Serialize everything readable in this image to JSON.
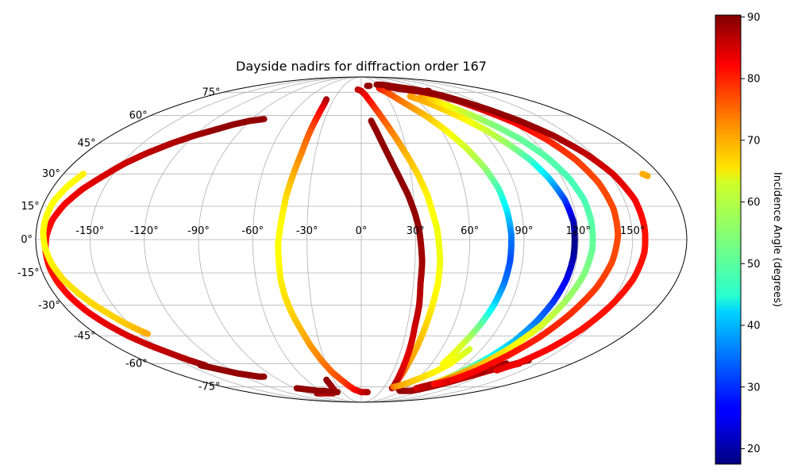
{
  "chart_data": {
    "type": "scatter",
    "projection": "mollweide",
    "title": "Dayside nadirs for diffraction order 167",
    "xlabel": "",
    "ylabel": "",
    "xlim": [
      -180,
      180
    ],
    "ylim": [
      -90,
      90
    ],
    "grid": true,
    "lon_tick_labels": [
      "-150°",
      "-120°",
      "-90°",
      "-60°",
      "-30°",
      "0°",
      "30°",
      "60°",
      "90°",
      "120°",
      "150°"
    ],
    "lat_tick_labels": [
      "-75°",
      "-60°",
      "-45°",
      "-30°",
      "-15°",
      "0°",
      "15°",
      "30°",
      "45°",
      "60°",
      "75°"
    ],
    "colorbar": {
      "label": "Incidence Angle (degrees)",
      "colormap": "jet",
      "range": [
        17.5,
        90.3
      ],
      "tick_labels": [
        "20",
        "30",
        "40",
        "50",
        "60",
        "70",
        "80",
        "90"
      ]
    },
    "series": [
      {
        "lon": [
          -38,
          -37,
          -37,
          -38,
          -39,
          -41,
          -43,
          -44,
          -45,
          -46,
          -46,
          -46,
          -45,
          -43,
          -40,
          -37,
          -33,
          -28,
          -22,
          -16,
          -10,
          -5,
          0,
          5,
          8,
          10
        ],
        "lat": [
          70,
          67,
          60,
          50,
          40,
          30,
          20,
          12,
          5,
          -2,
          -10,
          -18,
          -26,
          -34,
          -42,
          -50,
          -58,
          -65,
          -70,
          -74,
          -77,
          -78,
          -79,
          -79,
          -79,
          -79
        ],
        "incidence": [
          88,
          85,
          80,
          75,
          72,
          69,
          66,
          64,
          63,
          63,
          63,
          64,
          65,
          66,
          68,
          70,
          72,
          74,
          76,
          78,
          80,
          82,
          84,
          85,
          86,
          87
        ]
      },
      {
        "lon": [
          -75,
          -70,
          -62,
          -55,
          -48,
          -42,
          -39,
          -38,
          -38
        ],
        "lat": [
          -80,
          -80,
          -80,
          -80,
          -80,
          -79,
          -77,
          -74,
          -70
        ],
        "incidence": [
          88,
          87,
          86,
          86,
          86,
          86,
          87,
          88,
          89
        ]
      },
      {
        "lon": [
          -5,
          0,
          5,
          10,
          15,
          20,
          25,
          30,
          34,
          38,
          40,
          42,
          43,
          44,
          44,
          43,
          42,
          41,
          40,
          40,
          40
        ],
        "lat": [
          77,
          76,
          73,
          68,
          62,
          55,
          47,
          38,
          30,
          20,
          12,
          5,
          -2,
          -10,
          -20,
          -30,
          -40,
          -50,
          -60,
          -66,
          -72
        ],
        "incidence": [
          86,
          85,
          83,
          80,
          77,
          74,
          71,
          68,
          66,
          64,
          63,
          62,
          62,
          62,
          63,
          64,
          66,
          68,
          70,
          74,
          80
        ]
      },
      {
        "lon": [
          8,
          11,
          15,
          19,
          23,
          27,
          30,
          32,
          33,
          34,
          34,
          35,
          35,
          36,
          37,
          38,
          40,
          42
        ],
        "lat": [
          57,
          52,
          44,
          36,
          28,
          20,
          12,
          5,
          -2,
          -10,
          -20,
          -30,
          -40,
          -50,
          -60,
          -66,
          -72,
          -76
        ],
        "incidence": [
          89,
          89,
          89,
          89,
          89,
          89,
          89,
          89,
          88,
          88,
          87,
          86,
          85,
          84,
          83,
          84,
          85,
          86
        ]
      },
      {
        "lon": [
          10,
          12,
          14
        ],
        "lat": [
          80,
          80,
          80
        ],
        "incidence": [
          89,
          89,
          89
        ]
      },
      {
        "lon": [
          40,
          44,
          50,
          58,
          66,
          74,
          82,
          90,
          100,
          110,
          120,
          128,
          135
        ],
        "lat": [
          -72,
          -74,
          -76,
          -78,
          -78,
          -78,
          -77,
          -75,
          -72,
          -68,
          -64,
          -62,
          -60
        ],
        "incidence": [
          87,
          88,
          89,
          89,
          89,
          88,
          88,
          87,
          87,
          86,
          86,
          86,
          86
        ]
      },
      {
        "lon": [
          27,
          35,
          45,
          55,
          63,
          70,
          76,
          80,
          82,
          83,
          83,
          82,
          80,
          77,
          73,
          70
        ],
        "lat": [
          78,
          74,
          67,
          60,
          52,
          43,
          33,
          23,
          12,
          2,
          -10,
          -20,
          -30,
          -40,
          -50,
          -60
        ],
        "incidence": [
          80,
          76,
          72,
          68,
          64,
          60,
          56,
          50,
          43,
          36,
          32,
          35,
          42,
          52,
          60,
          63
        ]
      },
      {
        "lon": [
          42,
          48,
          55,
          62,
          70,
          76,
          81
        ],
        "lat": [
          -75,
          -74,
          -72,
          -69,
          -65,
          -60,
          -52
        ],
        "incidence": [
          73,
          70,
          68,
          66,
          64,
          63,
          60
        ]
      },
      {
        "lon": [
          57,
          63,
          70,
          77,
          85,
          93,
          100,
          107,
          112,
          116,
          118,
          118,
          118,
          117,
          115,
          112,
          108,
          103,
          97,
          92,
          87
        ],
        "lat": [
          72,
          70,
          67,
          63,
          58,
          52,
          45,
          37,
          28,
          18,
          8,
          0,
          -8,
          -18,
          -28,
          -38,
          -48,
          -56,
          -63,
          -68,
          -72
        ],
        "incidence": [
          70,
          69,
          68,
          66,
          64,
          60,
          56,
          50,
          42,
          32,
          22,
          18,
          20,
          25,
          30,
          35,
          40,
          45,
          52,
          58,
          64
        ]
      },
      {
        "lon": [
          75,
          78,
          82,
          86,
          90,
          94
        ],
        "lat": [
          -76,
          -75,
          -74,
          -73,
          -72,
          -71
        ],
        "incidence": [
          84,
          85,
          86,
          87,
          88,
          88
        ]
      },
      {
        "lon": [
          70,
          78,
          86,
          95,
          104,
          112,
          119,
          124,
          127,
          128,
          128,
          126,
          122,
          117,
          110,
          102,
          95,
          88
        ],
        "lat": [
          72,
          69,
          65,
          60,
          54,
          47,
          38,
          28,
          18,
          8,
          -4,
          -16,
          -28,
          -40,
          -52,
          -62,
          -68,
          -73
        ],
        "incidence": [
          70,
          66,
          62,
          58,
          54,
          52,
          51,
          50,
          50,
          51,
          52,
          54,
          56,
          60,
          64,
          68,
          71,
          75
        ]
      },
      {
        "lon": [
          88,
          94,
          100,
          106,
          112,
          118,
          124
        ],
        "lat": [
          -73,
          -72,
          -70,
          -68,
          -66,
          -63,
          -60
        ],
        "incidence": [
          80,
          82,
          84,
          86,
          87,
          88,
          89
        ]
      },
      {
        "lon": [
          42,
          52,
          62,
          72,
          82,
          92,
          102,
          112,
          122,
          130,
          136,
          140,
          142,
          142,
          140,
          136,
          130,
          123,
          115,
          108,
          100
        ],
        "lat": [
          79,
          78,
          77,
          76,
          75,
          73,
          69,
          63,
          56,
          47,
          37,
          26,
          14,
          2,
          -10,
          -22,
          -34,
          -46,
          -56,
          -64,
          -70
        ],
        "incidence": [
          88,
          88,
          88,
          88,
          87,
          86,
          85,
          83,
          81,
          79,
          77,
          76,
          76,
          76,
          76,
          77,
          78,
          79,
          80,
          81,
          82
        ]
      },
      {
        "lon": [
          120,
          126,
          132,
          138
        ],
        "lat": [
          -64,
          -62,
          -60,
          -58
        ],
        "incidence": [
          86,
          87,
          88,
          89
        ]
      },
      {
        "lon": [
          28,
          38,
          48,
          58,
          68,
          78,
          88,
          98,
          108,
          118,
          128,
          138,
          146,
          152,
          156,
          157,
          157,
          155,
          151,
          146,
          140,
          133,
          126
        ],
        "lat": [
          81,
          81,
          80,
          79,
          78,
          77,
          75,
          72,
          68,
          63,
          57,
          49,
          40,
          30,
          18,
          6,
          -6,
          -18,
          -30,
          -42,
          -52,
          -60,
          -64
        ],
        "incidence": [
          89,
          89,
          89,
          89,
          89,
          89,
          89,
          89,
          89,
          89,
          89,
          88,
          86,
          84,
          82,
          80,
          80,
          80,
          80,
          80,
          81,
          82,
          83
        ]
      },
      {
        "lon": [
          89,
          92
        ],
        "lat": [
          76,
          76
        ],
        "incidence": [
          89,
          89
        ]
      },
      {
        "lon": [
          170,
          172
        ],
        "lat": [
          30,
          29
        ],
        "incidence": [
          69,
          69
        ]
      },
      {
        "lon": [
          -80,
          -90,
          -100,
          -110,
          -120,
          -130,
          -140,
          -148,
          -155,
          -162,
          -168,
          -172,
          -174,
          -175,
          -175,
          -174,
          -172,
          -169,
          -165,
          -160,
          -154,
          -148,
          -142,
          -136
        ],
        "lat": [
          58,
          57,
          55,
          52,
          49,
          45,
          40,
          35,
          29,
          23,
          16,
          9,
          2,
          -5,
          -12,
          -19,
          -26,
          -33,
          -39,
          -45,
          -50,
          -54,
          -58,
          -61
        ],
        "incidence": [
          89,
          89,
          89,
          89,
          88,
          87,
          86,
          85,
          84,
          83,
          82,
          81,
          80,
          80,
          80,
          80,
          81,
          82,
          83,
          84,
          85,
          86,
          87,
          88
        ]
      },
      {
        "lon": [
          -100,
          -105,
          -112,
          -120,
          -128,
          -136,
          -140
        ],
        "lat": [
          -68,
          -68,
          -67,
          -66,
          -64,
          -62,
          -61
        ],
        "incidence": [
          89,
          89,
          89,
          89,
          89,
          89,
          89
        ]
      },
      {
        "lon": [
          -38,
          -46,
          -56,
          -66,
          -76,
          -88
        ],
        "lat": [
          -79,
          -79,
          -78,
          -78,
          -77,
          -76
        ],
        "incidence": [
          89,
          89,
          89,
          89,
          89,
          89
        ]
      },
      {
        "lon": [
          -168,
          -172,
          -175,
          -176,
          -176,
          -175,
          -173,
          -170,
          -166,
          -161,
          -156,
          -152,
          -148,
          -145
        ],
        "lat": [
          30,
          24,
          17,
          10,
          3,
          -4,
          -11,
          -18,
          -24,
          -30,
          -35,
          -39,
          -42,
          -44
        ],
        "incidence": [
          64,
          63,
          63,
          63,
          63,
          63,
          64,
          65,
          65,
          66,
          66,
          67,
          68,
          69
        ]
      }
    ]
  }
}
